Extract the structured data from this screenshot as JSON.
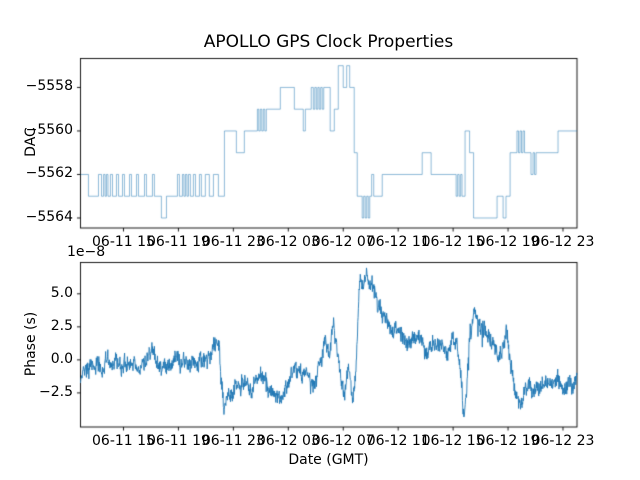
{
  "figure": {
    "title": "APOLLO GPS Clock Properties",
    "xlabel": "Date (GMT)",
    "background_color": "#ffffff",
    "line_color": "#1f77b4",
    "axis_color": "#000000",
    "x_tick_labels": [
      "06-11 15",
      "06-11 19",
      "06-11 23",
      "06-12 03",
      "06-12 07",
      "06-12 11",
      "06-12 15",
      "06-12 19",
      "06-12 23"
    ],
    "x_ticks_hours": [
      15,
      19,
      23,
      27,
      31,
      35,
      39,
      43,
      47
    ],
    "xlim_hours": [
      11.87,
      48.02
    ],
    "x_unit_note": "hours since 06-11 00:00 GMT"
  },
  "chart_data": [
    {
      "type": "line",
      "subtype": "step-post",
      "ylabel": "DAC",
      "ylim": [
        -5564.46,
        -5556.67
      ],
      "y_ticks": [
        -5558,
        -5560,
        -5562,
        -5564
      ],
      "y_tick_labels": [
        "−5558",
        "−5560",
        "−5562",
        "−5564"
      ],
      "line_alpha": 0.5,
      "steps_hour_value": [
        [
          11.87,
          -5562
        ],
        [
          12.45,
          -5563
        ],
        [
          13.18,
          -5562
        ],
        [
          13.4,
          -5563
        ],
        [
          13.55,
          -5562
        ],
        [
          13.66,
          -5563
        ],
        [
          13.76,
          -5562
        ],
        [
          13.87,
          -5563
        ],
        [
          14.05,
          -5562
        ],
        [
          14.2,
          -5563
        ],
        [
          14.49,
          -5562
        ],
        [
          14.64,
          -5563
        ],
        [
          14.93,
          -5562
        ],
        [
          15.07,
          -5563
        ],
        [
          15.44,
          -5562
        ],
        [
          15.58,
          -5563
        ],
        [
          15.95,
          -5562
        ],
        [
          16.09,
          -5563
        ],
        [
          16.53,
          -5562
        ],
        [
          16.67,
          -5563
        ],
        [
          17.11,
          -5562
        ],
        [
          17.25,
          -5563
        ],
        [
          17.76,
          -5564
        ],
        [
          18.13,
          -5563
        ],
        [
          18.93,
          -5562
        ],
        [
          19.07,
          -5563
        ],
        [
          19.29,
          -5562
        ],
        [
          19.4,
          -5563
        ],
        [
          19.51,
          -5562
        ],
        [
          19.62,
          -5563
        ],
        [
          19.73,
          -5562
        ],
        [
          19.87,
          -5563
        ],
        [
          20.09,
          -5562
        ],
        [
          20.24,
          -5563
        ],
        [
          20.53,
          -5562
        ],
        [
          20.67,
          -5563
        ],
        [
          20.96,
          -5562
        ],
        [
          21.25,
          -5563
        ],
        [
          21.55,
          -5562
        ],
        [
          21.91,
          -5563
        ],
        [
          22.35,
          -5560
        ],
        [
          23.22,
          -5561
        ],
        [
          23.8,
          -5560
        ],
        [
          24.75,
          -5559
        ],
        [
          24.85,
          -5560
        ],
        [
          24.96,
          -5559
        ],
        [
          25.07,
          -5560
        ],
        [
          25.18,
          -5559
        ],
        [
          25.29,
          -5560
        ],
        [
          25.4,
          -5559
        ],
        [
          26.42,
          -5558
        ],
        [
          27.44,
          -5559
        ],
        [
          28.09,
          -5560
        ],
        [
          28.24,
          -5559
        ],
        [
          28.67,
          -5558
        ],
        [
          28.82,
          -5559
        ],
        [
          28.93,
          -5558
        ],
        [
          29.04,
          -5559
        ],
        [
          29.15,
          -5558
        ],
        [
          29.25,
          -5559
        ],
        [
          29.36,
          -5558
        ],
        [
          29.47,
          -5559
        ],
        [
          29.58,
          -5558
        ],
        [
          30.05,
          -5560
        ],
        [
          30.35,
          -5559
        ],
        [
          30.64,
          -5557
        ],
        [
          31.0,
          -5558
        ],
        [
          31.25,
          -5557
        ],
        [
          31.47,
          -5558
        ],
        [
          31.8,
          -5561
        ],
        [
          32.02,
          -5563
        ],
        [
          32.38,
          -5564
        ],
        [
          32.49,
          -5563
        ],
        [
          32.6,
          -5564
        ],
        [
          32.71,
          -5563
        ],
        [
          32.82,
          -5564
        ],
        [
          32.93,
          -5563
        ],
        [
          33.07,
          -5562
        ],
        [
          33.22,
          -5563
        ],
        [
          33.84,
          -5562
        ],
        [
          36.75,
          -5561
        ],
        [
          37.4,
          -5562
        ],
        [
          39.22,
          -5563
        ],
        [
          39.33,
          -5562
        ],
        [
          39.44,
          -5563
        ],
        [
          39.55,
          -5562
        ],
        [
          39.65,
          -5563
        ],
        [
          39.87,
          -5560
        ],
        [
          40.2,
          -5561
        ],
        [
          40.49,
          -5564
        ],
        [
          42.2,
          -5563
        ],
        [
          42.64,
          -5564
        ],
        [
          42.85,
          -5563
        ],
        [
          43.15,
          -5561
        ],
        [
          43.65,
          -5560
        ],
        [
          43.76,
          -5561
        ],
        [
          43.87,
          -5560
        ],
        [
          43.98,
          -5561
        ],
        [
          44.09,
          -5560
        ],
        [
          44.2,
          -5561
        ],
        [
          44.67,
          -5562
        ],
        [
          44.82,
          -5561
        ],
        [
          44.93,
          -5562
        ],
        [
          45.04,
          -5561
        ],
        [
          46.64,
          -5560
        ]
      ]
    },
    {
      "type": "line",
      "subtype": "noisy",
      "ylabel": "Phase (s)",
      "offset_text": "1e−8",
      "value_scale": "1e-8",
      "ylim": [
        -5.08,
        7.37
      ],
      "y_ticks": [
        5.0,
        2.5,
        0.0,
        -2.5
      ],
      "y_tick_labels": [
        "5.0",
        "2.5",
        "0.0",
        "−2.5"
      ],
      "noise_amplitude": 0.55,
      "points": 1600,
      "trend_hour_value": [
        [
          11.87,
          -1.3
        ],
        [
          12.6,
          -0.35
        ],
        [
          13.5,
          -0.3
        ],
        [
          14.5,
          -0.4
        ],
        [
          15.5,
          -0.25
        ],
        [
          16.5,
          -0.35
        ],
        [
          17.0,
          -0.1
        ],
        [
          17.3,
          0.35
        ],
        [
          17.8,
          -0.45
        ],
        [
          18.5,
          -0.4
        ],
        [
          19.5,
          -0.5
        ],
        [
          20.5,
          -0.3
        ],
        [
          21.0,
          -0.05
        ],
        [
          21.5,
          0.4
        ],
        [
          21.75,
          1.3
        ],
        [
          22.0,
          0.3
        ],
        [
          22.3,
          -3.6
        ],
        [
          22.6,
          -3.0
        ],
        [
          23.1,
          -2.1
        ],
        [
          24.2,
          -1.9
        ],
        [
          25.2,
          -1.6
        ],
        [
          25.8,
          -2.3
        ],
        [
          26.4,
          -2.6
        ],
        [
          27.0,
          -1.4
        ],
        [
          27.4,
          0.2
        ],
        [
          27.9,
          -0.8
        ],
        [
          28.4,
          -1.1
        ],
        [
          28.8,
          -1.6
        ],
        [
          29.3,
          0.3
        ],
        [
          29.7,
          1.9
        ],
        [
          30.0,
          0.4
        ],
        [
          30.3,
          2.5
        ],
        [
          30.7,
          -0.9
        ],
        [
          31.1,
          -2.5
        ],
        [
          31.4,
          -0.6
        ],
        [
          31.7,
          -2.9
        ],
        [
          31.9,
          -1.0
        ],
        [
          32.2,
          6.5
        ],
        [
          32.5,
          5.6
        ],
        [
          32.8,
          6.2
        ],
        [
          33.3,
          4.9
        ],
        [
          34.0,
          3.1
        ],
        [
          34.7,
          2.2
        ],
        [
          35.3,
          1.8
        ],
        [
          35.8,
          1.5
        ],
        [
          36.4,
          0.9
        ],
        [
          36.9,
          0.8
        ],
        [
          37.5,
          1.3
        ],
        [
          38.0,
          1.1
        ],
        [
          38.7,
          0.6
        ],
        [
          39.0,
          0.9
        ],
        [
          39.3,
          1.0
        ],
        [
          39.55,
          -0.8
        ],
        [
          39.8,
          -4.4
        ],
        [
          40.0,
          -2.0
        ],
        [
          40.2,
          2.2
        ],
        [
          40.5,
          3.7
        ],
        [
          41.0,
          2.7
        ],
        [
          41.3,
          2.1
        ],
        [
          42.0,
          0.8
        ],
        [
          42.5,
          0.4
        ],
        [
          42.9,
          2.2
        ],
        [
          43.2,
          -1.4
        ],
        [
          43.7,
          -3.1
        ],
        [
          44.1,
          -2.9
        ],
        [
          44.4,
          -2.3
        ],
        [
          45.0,
          -1.9
        ],
        [
          45.6,
          -1.5
        ],
        [
          46.2,
          -1.9
        ],
        [
          46.7,
          -1.7
        ],
        [
          47.4,
          -1.9
        ],
        [
          48.02,
          -1.8
        ]
      ]
    }
  ]
}
